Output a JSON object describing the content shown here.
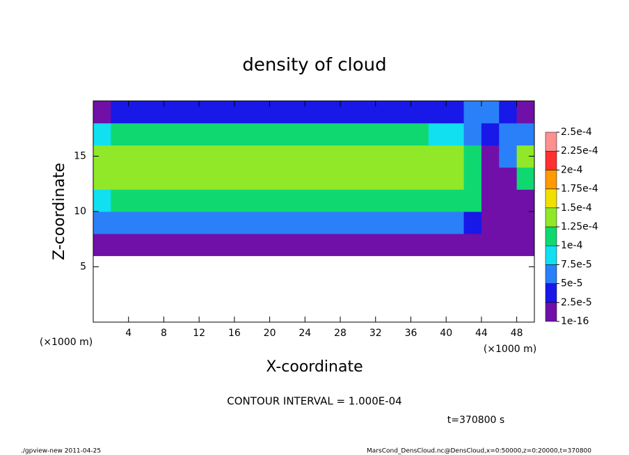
{
  "chart_data": {
    "type": "contour",
    "title": "density of cloud",
    "x_label": "X-coordinate",
    "y_label": "Z-coordinate",
    "x_unit": "(×1000 m)",
    "x_unit_right": "(×1000 m)",
    "contour_note": "CONTOUR INTERVAL = 1.000E-04",
    "time_label": "t=370800 s",
    "footer_left": "./gpview-new   2011-04-25",
    "footer_right": "MarsCond_DensCloud.nc@DensCloud,x=0:50000,z=0:20000,t=370800",
    "xlim": [
      0,
      50
    ],
    "ylim": [
      0,
      20
    ],
    "xticks": [
      4,
      8,
      12,
      16,
      20,
      24,
      28,
      32,
      36,
      40,
      44,
      48
    ],
    "yticks": [
      5,
      10,
      15
    ],
    "x": [
      1,
      3,
      5,
      7,
      9,
      11,
      13,
      15,
      17,
      19,
      21,
      23,
      25,
      27,
      29,
      31,
      33,
      35,
      37,
      39,
      41,
      43,
      45,
      47,
      49
    ],
    "y": [
      1,
      3,
      5,
      7,
      9,
      11,
      13,
      15,
      17,
      19
    ],
    "z": [
      [
        null,
        null,
        null,
        null,
        null,
        null,
        null,
        null,
        null,
        null,
        null,
        null,
        null,
        null,
        null,
        null,
        null,
        null,
        null,
        null,
        null,
        null,
        null,
        null,
        null
      ],
      [
        null,
        null,
        null,
        null,
        null,
        null,
        null,
        null,
        null,
        null,
        null,
        null,
        null,
        null,
        null,
        null,
        null,
        null,
        null,
        null,
        null,
        null,
        null,
        null,
        null
      ],
      [
        null,
        null,
        null,
        null,
        null,
        null,
        null,
        null,
        null,
        null,
        null,
        null,
        null,
        null,
        null,
        null,
        null,
        null,
        null,
        null,
        null,
        null,
        null,
        null,
        null
      ],
      [
        1e-05,
        1e-05,
        1e-05,
        1e-05,
        1e-05,
        1e-05,
        1e-05,
        1e-05,
        1e-05,
        1e-05,
        1e-05,
        1e-05,
        1e-05,
        1e-05,
        1e-05,
        1e-05,
        1e-05,
        1e-05,
        1e-05,
        1e-05,
        1e-05,
        1e-05,
        1e-05,
        1e-05,
        1e-05
      ],
      [
        5e-05,
        5e-05,
        5e-05,
        5e-05,
        5e-05,
        5e-05,
        5e-05,
        5e-05,
        5e-05,
        5e-05,
        5e-05,
        5e-05,
        5e-05,
        5e-05,
        5e-05,
        5e-05,
        5e-05,
        5e-05,
        5e-05,
        5e-05,
        5e-05,
        3e-05,
        1e-05,
        1e-05,
        1e-05
      ],
      [
        9e-05,
        0.00012,
        0.00012,
        0.00012,
        0.00012,
        0.00012,
        0.00012,
        0.00012,
        0.00012,
        0.00012,
        0.00012,
        0.00012,
        0.00012,
        0.00012,
        0.00012,
        0.00012,
        0.00012,
        0.00012,
        0.00012,
        0.00012,
        0.00012,
        0.00011,
        1e-05,
        1e-05,
        2e-05
      ],
      [
        0.00013,
        0.00013,
        0.00013,
        0.00013,
        0.00013,
        0.00013,
        0.00013,
        0.00013,
        0.00013,
        0.00013,
        0.00013,
        0.00013,
        0.00013,
        0.00013,
        0.00013,
        0.00013,
        0.00013,
        0.00013,
        0.00013,
        0.00013,
        0.00013,
        0.00012,
        1e-05,
        2e-05,
        0.00012
      ],
      [
        0.00013,
        0.000135,
        0.000135,
        0.000135,
        0.000135,
        0.000135,
        0.000135,
        0.000135,
        0.000135,
        0.000135,
        0.000135,
        0.000135,
        0.000135,
        0.000135,
        0.000135,
        0.000135,
        0.000135,
        0.000135,
        0.000135,
        0.000135,
        0.000135,
        0.0001,
        2e-05,
        5e-05,
        0.00013
      ],
      [
        8e-05,
        0.00011,
        0.00011,
        0.00011,
        0.00011,
        0.00011,
        0.00011,
        0.00011,
        0.00011,
        0.00011,
        0.00011,
        0.00011,
        0.00011,
        0.00011,
        0.00011,
        0.00011,
        0.00011,
        0.00011,
        0.00011,
        9e-05,
        9e-05,
        6e-05,
        4e-05,
        5e-05,
        6e-05
      ],
      [
        1e-05,
        3.5e-05,
        3.5e-05,
        3.5e-05,
        3.5e-05,
        3.5e-05,
        3.5e-05,
        3.5e-05,
        3.5e-05,
        3.5e-05,
        3.5e-05,
        3.5e-05,
        3.5e-05,
        3.5e-05,
        3.5e-05,
        3.5e-05,
        3.5e-05,
        3.5e-05,
        3.5e-05,
        3.5e-05,
        3.5e-05,
        6e-05,
        7e-05,
        4e-05,
        2e-05
      ]
    ],
    "levels": [
      {
        "value": 1e-16,
        "label": "1e-16"
      },
      {
        "value": 2.5e-05,
        "label": "2.5e-5"
      },
      {
        "value": 5e-05,
        "label": "5e-5"
      },
      {
        "value": 7.5e-05,
        "label": "7.5e-5"
      },
      {
        "value": 0.0001,
        "label": "1e-4"
      },
      {
        "value": 0.000125,
        "label": "1.25e-4"
      },
      {
        "value": 0.00015,
        "label": "1.5e-4"
      },
      {
        "value": 0.000175,
        "label": "1.75e-4"
      },
      {
        "value": 0.0002,
        "label": "2e-4"
      },
      {
        "value": 0.000225,
        "label": "2.25e-4"
      },
      {
        "value": 0.00025,
        "label": "2.5e-4"
      }
    ],
    "colors": [
      "#7010a8",
      "#1818e8",
      "#2a80f8",
      "#10e0f0",
      "#10d870",
      "#90e828",
      "#f0e000",
      "#ff9a00",
      "#ff3030",
      "#ff9090"
    ]
  }
}
